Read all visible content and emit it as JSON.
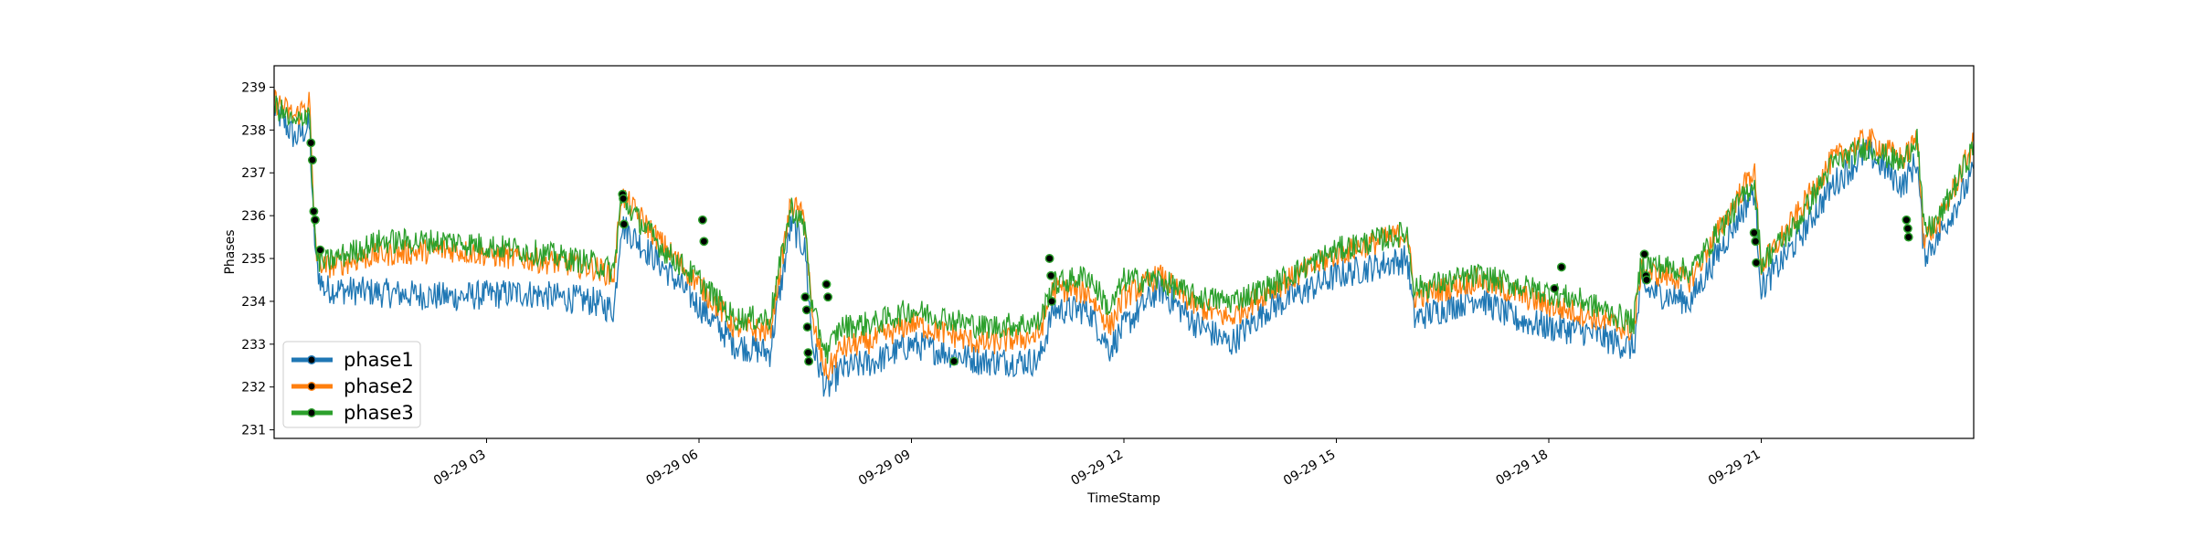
{
  "chart_data": {
    "type": "line",
    "title": "",
    "xlabel": "TimeStamp",
    "ylabel": "Phases",
    "x_start": "2020-09-29 00:00",
    "x_end": "2020-09-29 24:00",
    "xlim": [
      0,
      24
    ],
    "ylim": [
      230.8,
      239.5
    ],
    "yticks": [
      231,
      232,
      233,
      234,
      235,
      236,
      237,
      238,
      239
    ],
    "xticks": [
      {
        "value": 3,
        "label": "09-29 03"
      },
      {
        "value": 6,
        "label": "09-29 06"
      },
      {
        "value": 9,
        "label": "09-29 09"
      },
      {
        "value": 12,
        "label": "09-29 12"
      },
      {
        "value": 15,
        "label": "09-29 15"
      },
      {
        "value": 18,
        "label": "09-29 18"
      },
      {
        "value": 21,
        "label": "09-29 21"
      }
    ],
    "legend_position": "lower-left",
    "grid": false,
    "series": [
      {
        "name": "phase1",
        "color": "#1f77b4",
        "noise": 0.35,
        "x": [
          0,
          0.3,
          0.5,
          0.55,
          0.6,
          0.7,
          1.5,
          2.5,
          3.5,
          4.5,
          4.8,
          4.9,
          5.5,
          6,
          6.5,
          7,
          7.3,
          7.5,
          7.6,
          7.8,
          8,
          8.5,
          9,
          10,
          10.8,
          11,
          11.5,
          11.8,
          12,
          12.5,
          13,
          13.5,
          14,
          15,
          16,
          16.1,
          17,
          17.5,
          18,
          18.5,
          19.2,
          19.3,
          20,
          20.9,
          21,
          21.5,
          22,
          22.5,
          23,
          23.2,
          23.3,
          23.5,
          24
        ],
        "y": [
          238.5,
          237.8,
          238.1,
          236.0,
          234.8,
          234.3,
          234.2,
          234.1,
          234.2,
          234.0,
          233.8,
          235.8,
          234.8,
          233.9,
          233.0,
          232.8,
          235.8,
          235.2,
          233.0,
          231.9,
          232.4,
          232.6,
          233.0,
          232.6,
          232.6,
          233.8,
          233.8,
          232.9,
          233.4,
          234.3,
          233.5,
          233.0,
          233.8,
          234.6,
          235.0,
          233.6,
          234.1,
          233.6,
          233.4,
          233.3,
          232.9,
          234.3,
          234.0,
          236.6,
          234.3,
          235.4,
          236.7,
          237.5,
          236.7,
          237.3,
          235.1,
          235.5,
          237.0
        ]
      },
      {
        "name": "phase2",
        "color": "#ff7f0e",
        "noise": 0.3,
        "x": [
          0,
          0.3,
          0.5,
          0.55,
          0.6,
          0.7,
          1.5,
          2.5,
          3.5,
          4.5,
          4.8,
          4.9,
          5.5,
          6,
          6.5,
          7,
          7.3,
          7.5,
          7.6,
          7.8,
          8,
          8.5,
          9,
          10,
          10.8,
          11,
          11.5,
          11.8,
          12,
          12.5,
          13,
          13.5,
          14,
          15,
          16,
          16.1,
          17,
          17.5,
          18,
          18.5,
          19.2,
          19.3,
          20,
          20.9,
          21,
          21.5,
          22,
          22.5,
          23,
          23.2,
          23.3,
          23.5,
          24
        ],
        "y": [
          238.7,
          238.3,
          238.7,
          236.3,
          235.1,
          234.8,
          235.1,
          235.2,
          235.0,
          234.8,
          234.6,
          236.5,
          235.3,
          234.4,
          233.4,
          233.3,
          236.3,
          235.9,
          233.5,
          232.3,
          232.9,
          233.1,
          233.5,
          233.0,
          233.2,
          234.3,
          234.2,
          233.4,
          234.1,
          234.6,
          233.9,
          233.6,
          234.2,
          235.1,
          235.6,
          234.1,
          234.5,
          234.2,
          233.9,
          233.7,
          233.3,
          234.7,
          234.5,
          237.1,
          234.8,
          236.0,
          237.3,
          237.8,
          237.3,
          237.8,
          235.5,
          235.8,
          237.7
        ]
      },
      {
        "name": "phase3",
        "color": "#2ca02c",
        "noise": 0.3,
        "x": [
          0,
          0.3,
          0.5,
          0.55,
          0.6,
          0.7,
          1.5,
          2.5,
          3.5,
          4.5,
          4.8,
          4.9,
          5.5,
          6,
          6.5,
          7,
          7.3,
          7.5,
          7.6,
          7.8,
          8,
          8.5,
          9,
          10,
          10.8,
          11,
          11.5,
          11.8,
          12,
          12.5,
          13,
          13.5,
          14,
          15,
          16,
          16.1,
          17,
          17.5,
          18,
          18.5,
          19.2,
          19.3,
          20,
          20.9,
          21,
          21.5,
          22,
          22.5,
          23,
          23.2,
          23.3,
          23.5,
          24
        ],
        "y": [
          238.6,
          238.1,
          238.5,
          236.2,
          235.0,
          234.9,
          235.4,
          235.4,
          235.2,
          234.9,
          234.7,
          236.4,
          235.2,
          234.5,
          233.6,
          233.6,
          236.2,
          235.7,
          233.8,
          232.8,
          233.4,
          233.5,
          233.8,
          233.4,
          233.5,
          234.4,
          234.6,
          233.8,
          234.5,
          234.5,
          234.1,
          234.0,
          234.3,
          235.2,
          235.6,
          234.3,
          234.6,
          234.4,
          234.2,
          234.0,
          233.5,
          234.9,
          234.7,
          236.8,
          234.9,
          235.8,
          237.2,
          237.6,
          237.2,
          237.9,
          235.6,
          235.9,
          237.6
        ]
      }
    ],
    "markers": [
      {
        "x": 0.52,
        "y": 237.7
      },
      {
        "x": 0.54,
        "y": 237.3
      },
      {
        "x": 0.56,
        "y": 236.1
      },
      {
        "x": 0.58,
        "y": 235.9
      },
      {
        "x": 0.65,
        "y": 235.2
      },
      {
        "x": 4.92,
        "y": 236.5
      },
      {
        "x": 4.93,
        "y": 236.4
      },
      {
        "x": 4.94,
        "y": 235.8
      },
      {
        "x": 6.05,
        "y": 235.9
      },
      {
        "x": 6.07,
        "y": 235.4
      },
      {
        "x": 7.5,
        "y": 234.1
      },
      {
        "x": 7.52,
        "y": 233.8
      },
      {
        "x": 7.53,
        "y": 233.4
      },
      {
        "x": 7.54,
        "y": 232.8
      },
      {
        "x": 7.55,
        "y": 232.6
      },
      {
        "x": 7.8,
        "y": 234.4
      },
      {
        "x": 7.82,
        "y": 234.1
      },
      {
        "x": 9.6,
        "y": 232.6
      },
      {
        "x": 10.95,
        "y": 235.0
      },
      {
        "x": 10.97,
        "y": 234.6
      },
      {
        "x": 10.98,
        "y": 234.0
      },
      {
        "x": 18.08,
        "y": 234.3
      },
      {
        "x": 18.18,
        "y": 234.8
      },
      {
        "x": 19.35,
        "y": 235.1
      },
      {
        "x": 19.37,
        "y": 234.6
      },
      {
        "x": 19.38,
        "y": 234.5
      },
      {
        "x": 20.9,
        "y": 235.6
      },
      {
        "x": 20.92,
        "y": 235.4
      },
      {
        "x": 20.93,
        "y": 234.9
      },
      {
        "x": 23.05,
        "y": 235.9
      },
      {
        "x": 23.07,
        "y": 235.7
      },
      {
        "x": 23.08,
        "y": 235.5
      }
    ]
  }
}
